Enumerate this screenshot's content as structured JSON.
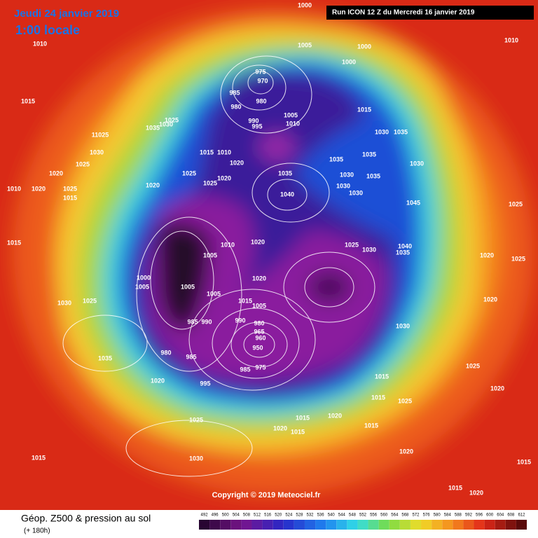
{
  "header": {
    "date": "Jeudi 24 janvier 2019",
    "time": "1:00 locale",
    "run": "Run ICON 12 Z du Mercredi 16 janvier 2019"
  },
  "map": {
    "copyright": "Copyright © 2019 Meteociel.fr",
    "pressure_labels": [
      "1010",
      "1015",
      "1025",
      "1035",
      "1030",
      "11025",
      "1030",
      "1025",
      "1020",
      "1010",
      "1020",
      "1025",
      "1015",
      "1015",
      "1020",
      "1025",
      "1025",
      "1020",
      "1015",
      "1010",
      "1020",
      "1005",
      "1000",
      "1000",
      "1000",
      "975",
      "970",
      "985",
      "980",
      "980",
      "990",
      "995",
      "1005",
      "1010",
      "1015",
      "1030",
      "1035",
      "1035",
      "1035",
      "1040",
      "1035",
      "1030",
      "1035",
      "1030",
      "1030",
      "1030",
      "1045",
      "1010",
      "1020",
      "1010",
      "1020",
      "1025",
      "1030",
      "1040",
      "1035",
      "1000",
      "1005",
      "1005",
      "1005",
      "1030",
      "1025",
      "1015",
      "1005",
      "980",
      "990",
      "965",
      "960",
      "950",
      "975",
      "985",
      "985",
      "990",
      "980",
      "985",
      "1035",
      "1020",
      "995",
      "1030",
      "1015",
      "1015",
      "1025",
      "1025",
      "1030",
      "1015",
      "1020",
      "1015",
      "1020",
      "1015",
      "1015",
      "1020",
      "1015",
      "1020",
      "1015",
      "1025",
      "1020",
      "1025",
      "1020",
      "1025",
      "1020",
      "1005"
    ]
  },
  "legend": {
    "title": "Géop. Z500 & pression au sol",
    "lead": "(+ 180h)",
    "scale": [
      492,
      496,
      500,
      504,
      508,
      512,
      516,
      520,
      524,
      528,
      532,
      536,
      540,
      544,
      548,
      552,
      556,
      560,
      564,
      568,
      572,
      576,
      580,
      584,
      588,
      592,
      596,
      600,
      604,
      608,
      612
    ]
  }
}
